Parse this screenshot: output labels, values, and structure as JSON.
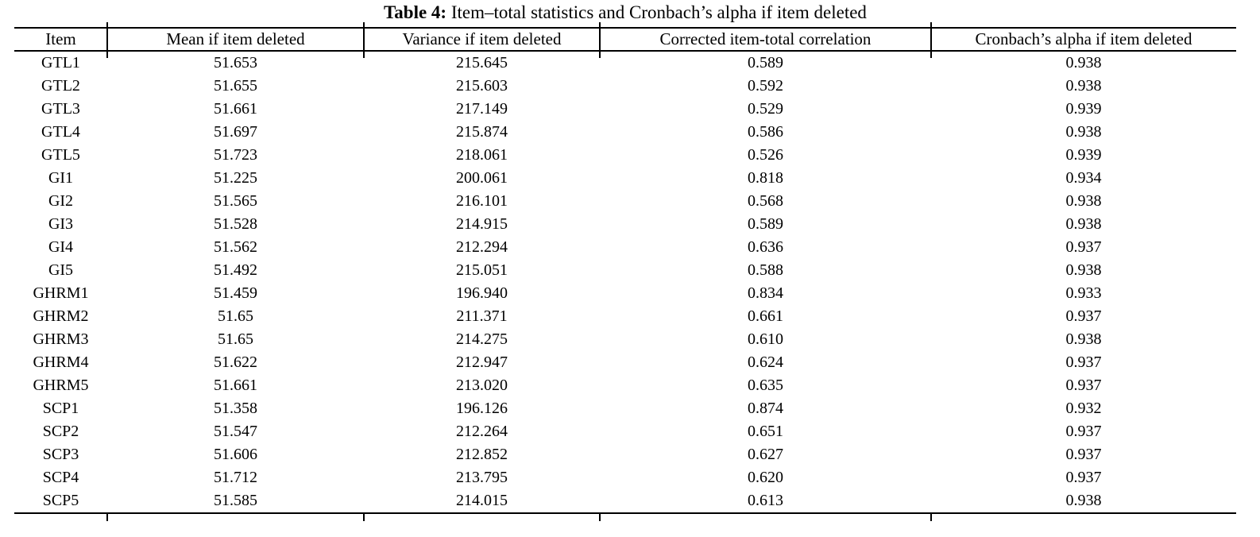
{
  "caption": {
    "label": "Table 4:",
    "text": " Item–total statistics and Cronbach’s alpha if item deleted"
  },
  "table": {
    "columns": [
      "Item",
      "Mean if item deleted",
      "Variance if item deleted",
      "Corrected item-total correlation",
      "Cronbach’s alpha if item deleted"
    ],
    "rows": [
      [
        "GTL1",
        "51.653",
        "215.645",
        "0.589",
        "0.938"
      ],
      [
        "GTL2",
        "51.655",
        "215.603",
        "0.592",
        "0.938"
      ],
      [
        "GTL3",
        "51.661",
        "217.149",
        "0.529",
        "0.939"
      ],
      [
        "GTL4",
        "51.697",
        "215.874",
        "0.586",
        "0.938"
      ],
      [
        "GTL5",
        "51.723",
        "218.061",
        "0.526",
        "0.939"
      ],
      [
        "GI1",
        "51.225",
        "200.061",
        "0.818",
        "0.934"
      ],
      [
        "GI2",
        "51.565",
        "216.101",
        "0.568",
        "0.938"
      ],
      [
        "GI3",
        "51.528",
        "214.915",
        "0.589",
        "0.938"
      ],
      [
        "GI4",
        "51.562",
        "212.294",
        "0.636",
        "0.937"
      ],
      [
        "GI5",
        "51.492",
        "215.051",
        "0.588",
        "0.938"
      ],
      [
        "GHRM1",
        "51.459",
        "196.940",
        "0.834",
        "0.933"
      ],
      [
        "GHRM2",
        "51.65",
        "211.371",
        "0.661",
        "0.937"
      ],
      [
        "GHRM3",
        "51.65",
        "214.275",
        "0.610",
        "0.938"
      ],
      [
        "GHRM4",
        "51.622",
        "212.947",
        "0.624",
        "0.937"
      ],
      [
        "GHRM5",
        "51.661",
        "213.020",
        "0.635",
        "0.937"
      ],
      [
        "SCP1",
        "51.358",
        "196.126",
        "0.874",
        "0.932"
      ],
      [
        "SCP2",
        "51.547",
        "212.264",
        "0.651",
        "0.937"
      ],
      [
        "SCP3",
        "51.606",
        "212.852",
        "0.627",
        "0.937"
      ],
      [
        "SCP4",
        "51.712",
        "213.795",
        "0.620",
        "0.937"
      ],
      [
        "SCP5",
        "51.585",
        "214.015",
        "0.613",
        "0.938"
      ]
    ]
  },
  "colors": {
    "text": "#000000",
    "background": "#ffffff",
    "rule": "#000000"
  }
}
